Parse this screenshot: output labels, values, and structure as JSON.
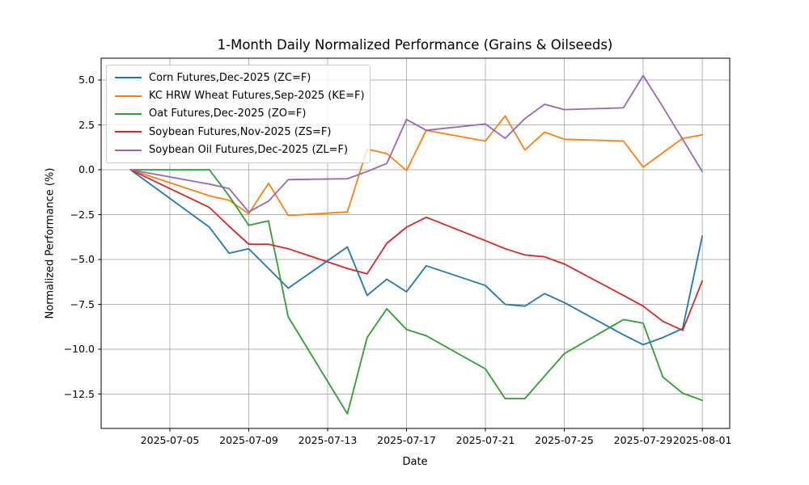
{
  "title": "1-Month Daily Normalized Performance (Grains & Oilseeds)",
  "xlabel": "Date",
  "ylabel": "Normalized Performance (%)",
  "chart_data": {
    "type": "line",
    "x": [
      "2025-07-03",
      "2025-07-07",
      "2025-07-08",
      "2025-07-09",
      "2025-07-10",
      "2025-07-11",
      "2025-07-14",
      "2025-07-15",
      "2025-07-16",
      "2025-07-17",
      "2025-07-18",
      "2025-07-21",
      "2025-07-22",
      "2025-07-23",
      "2025-07-24",
      "2025-07-25",
      "2025-07-28",
      "2025-07-29",
      "2025-07-30",
      "2025-07-31",
      "2025-08-01"
    ],
    "series": [
      {
        "name": "Corn Futures,Dec-2025 (ZC=F)",
        "color": "#1f77b4",
        "values": [
          0,
          -3.2,
          -4.65,
          -4.4,
          -5.5,
          -6.6,
          -4.3,
          -7.0,
          -6.1,
          -6.8,
          -5.35,
          -6.45,
          -7.5,
          -7.6,
          -6.9,
          -7.4,
          -9.2,
          -9.75,
          -9.35,
          -8.85,
          -3.7
        ]
      },
      {
        "name": "KC HRW Wheat Futures,Sep-2025 (KE=F)",
        "color": "#ff7f0e",
        "values": [
          0,
          -1.45,
          -1.7,
          -2.45,
          -0.75,
          -2.55,
          -2.35,
          1.15,
          0.9,
          -0.05,
          2.2,
          1.6,
          3.0,
          1.1,
          2.1,
          1.7,
          1.6,
          0.15,
          0.95,
          1.75,
          1.95
        ]
      },
      {
        "name": "Oat Futures,Dec-2025 (ZO=F)",
        "color": "#2ca02c",
        "values": [
          0,
          0,
          -1.45,
          -3.1,
          -2.85,
          -8.2,
          -13.6,
          -9.35,
          -7.75,
          -8.9,
          -9.25,
          -11.1,
          -12.75,
          -12.75,
          -11.5,
          -10.25,
          -8.35,
          -8.55,
          -11.55,
          -12.45,
          -12.85
        ]
      },
      {
        "name": "Soybean Futures,Nov-2025 (ZS=F)",
        "color": "#d62728",
        "values": [
          0,
          -2.1,
          -3.15,
          -4.15,
          -4.15,
          -4.4,
          -5.5,
          -5.8,
          -4.1,
          -3.2,
          -2.65,
          -3.95,
          -4.4,
          -4.75,
          -4.85,
          -5.25,
          -7.0,
          -7.6,
          -8.45,
          -8.95,
          -6.2
        ]
      },
      {
        "name": "Soybean Oil Futures,Dec-2025 (ZL=F)",
        "color": "#9467bd",
        "values": [
          0,
          -0.8,
          -1.05,
          -2.35,
          -1.75,
          -0.55,
          -0.5,
          -0.1,
          0.35,
          2.8,
          2.2,
          2.55,
          1.75,
          2.85,
          3.65,
          3.35,
          3.45,
          5.25,
          3.5,
          1.7,
          -0.1
        ]
      }
    ],
    "x_ticks": [
      "2025-07-05",
      "2025-07-09",
      "2025-07-13",
      "2025-07-17",
      "2025-07-21",
      "2025-07-25",
      "2025-07-29",
      "2025-08-01"
    ],
    "y_ticks": [
      5.0,
      2.5,
      0.0,
      -2.5,
      -5.0,
      -7.5,
      -10.0,
      -12.5
    ],
    "ylim": [
      -14.4,
      6.2
    ],
    "grid": true,
    "grid_color": "#b0b0b0",
    "legend_position": "upper left"
  }
}
